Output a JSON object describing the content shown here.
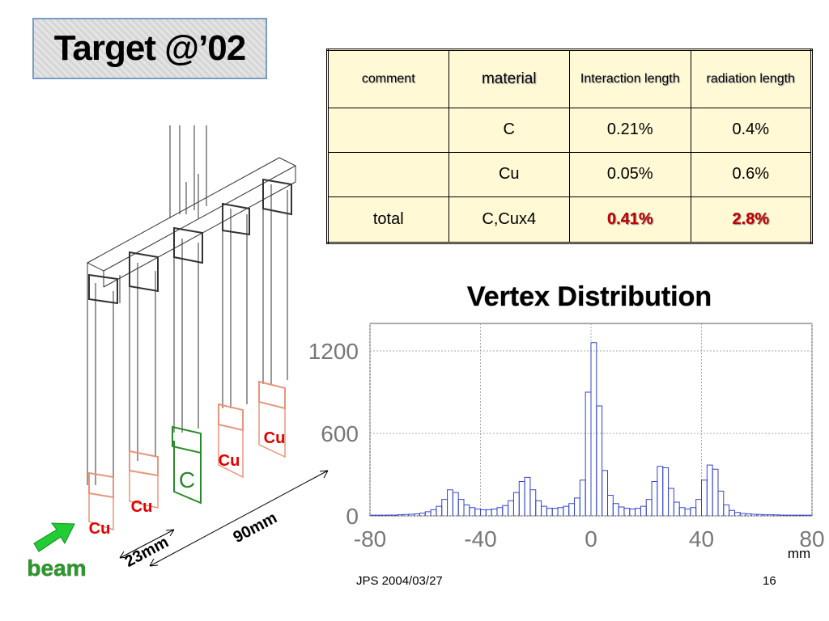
{
  "title": "Target @’02",
  "table": {
    "headers": [
      "comment",
      "material",
      "Interaction length",
      "radiation length"
    ],
    "rows": [
      [
        null,
        "C",
        "0.21%",
        "0.4%"
      ],
      [
        null,
        "Cu",
        "0.05%",
        "0.6%"
      ],
      [
        "total",
        "C,Cux4",
        "0.41%",
        "2.8%"
      ]
    ]
  },
  "diagram": {
    "targets": [
      "Cu",
      "Cu",
      "C",
      "Cu",
      "Cu"
    ],
    "beam": "beam",
    "dimensions": [
      "23mm",
      "90mm"
    ]
  },
  "chart_data": {
    "type": "histogram",
    "title": "Vertex Distribution",
    "x_label": "mm",
    "color": "#3344cc",
    "grid": true,
    "bins": [
      -80,
      -78,
      -76,
      -74,
      -72,
      -70,
      -68,
      -66,
      -64,
      -62,
      -60,
      -58,
      -56,
      -54,
      -52,
      -50,
      -48,
      -46,
      -44,
      -42,
      -40,
      -38,
      -36,
      -34,
      -32,
      -30,
      -28,
      -26,
      -24,
      -22,
      -20,
      -18,
      -16,
      -14,
      -12,
      -10,
      -8,
      -6,
      -4,
      -2,
      0,
      2,
      4,
      6,
      8,
      10,
      12,
      14,
      16,
      18,
      20,
      22,
      24,
      26,
      28,
      30,
      32,
      34,
      36,
      38,
      40,
      42,
      44,
      46,
      48,
      50,
      52,
      54,
      56,
      58,
      60,
      62,
      64,
      66,
      68,
      70,
      72,
      74,
      76,
      78,
      80
    ],
    "counts": [
      5,
      5,
      5,
      6,
      6,
      8,
      10,
      12,
      15,
      20,
      30,
      45,
      70,
      120,
      190,
      170,
      120,
      80,
      60,
      50,
      45,
      45,
      50,
      60,
      75,
      110,
      170,
      250,
      280,
      190,
      110,
      70,
      55,
      55,
      60,
      70,
      90,
      130,
      260,
      900,
      1260,
      800,
      330,
      150,
      90,
      65,
      55,
      50,
      55,
      70,
      120,
      250,
      360,
      350,
      200,
      100,
      60,
      50,
      60,
      120,
      260,
      370,
      340,
      180,
      80,
      40,
      25,
      18,
      15,
      12,
      10,
      8,
      8,
      7,
      6,
      5,
      5,
      5,
      5,
      5
    ],
    "xlim": [
      -80,
      80
    ],
    "xticks": [
      -80,
      -40,
      0,
      40,
      80
    ],
    "ylim": [
      0,
      1400
    ],
    "yticks": [
      0,
      600,
      1200
    ]
  },
  "footer": {
    "left": "JPS 2004/03/27",
    "page": "16"
  }
}
